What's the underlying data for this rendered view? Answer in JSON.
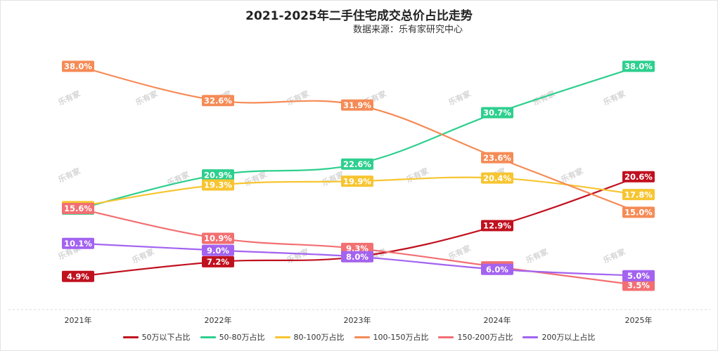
{
  "chart_data": {
    "type": "line",
    "title": "2021-2025年二手住宅成交总价占比走势",
    "subtitle": "数据来源：乐有家研究中心",
    "watermark": "乐有家",
    "categories": [
      "2021年",
      "2022年",
      "2023年",
      "2024年",
      "2025年"
    ],
    "x_tick_labels": [
      "2021年",
      "2022年",
      "2023年",
      "2024年",
      "2025年"
    ],
    "value_suffix": "%",
    "ylim": [
      0,
      40
    ],
    "grid": false,
    "legend_position": "bottom-center",
    "series": [
      {
        "name": "50万以下占比",
        "color": "#c0111f",
        "values": [
          4.9,
          7.2,
          8.0,
          12.9,
          20.6
        ]
      },
      {
        "name": "50-80万占比",
        "color": "#2ecf8e",
        "values": [
          15.5,
          20.9,
          22.6,
          30.7,
          38.0
        ]
      },
      {
        "name": "80-100万占比",
        "color": "#f7c531",
        "values": [
          15.9,
          19.3,
          19.9,
          20.4,
          17.8
        ]
      },
      {
        "name": "100-150万占比",
        "color": "#f58b56",
        "values": [
          38.0,
          32.6,
          31.9,
          23.6,
          15.0
        ]
      },
      {
        "name": "150-200万占比",
        "color": "#f26f72",
        "values": [
          15.6,
          10.9,
          9.3,
          6.4,
          3.5
        ]
      },
      {
        "name": "200万以上占比",
        "color": "#a363f0",
        "values": [
          10.1,
          9.0,
          8.0,
          6.0,
          5.0
        ]
      }
    ]
  }
}
